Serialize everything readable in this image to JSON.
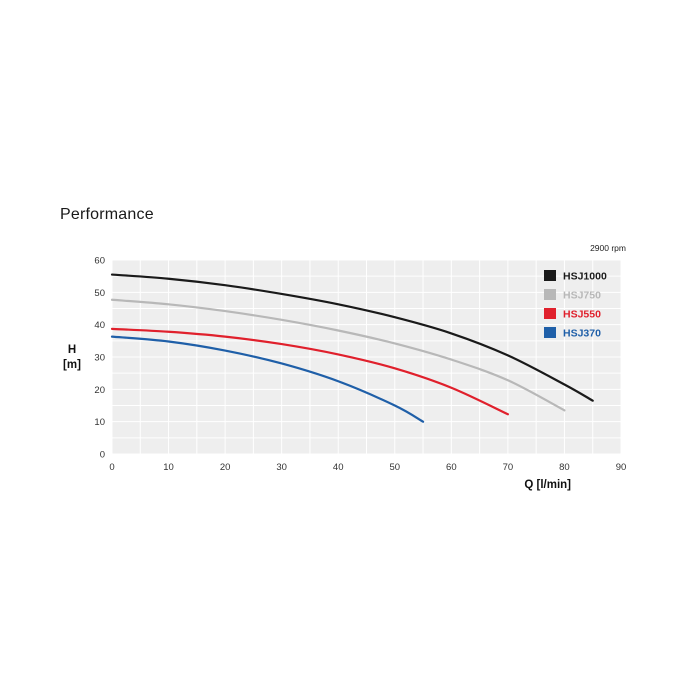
{
  "title": "Performance",
  "chart_data": {
    "type": "line",
    "title": "Performance",
    "annotation": "2900 rpm",
    "ylabel_line1": "H",
    "ylabel_line2": "[m]",
    "xlabel": "Q [l/min]",
    "xlim": [
      0,
      90
    ],
    "ylim": [
      0,
      60
    ],
    "xticks": [
      0,
      10,
      20,
      30,
      40,
      50,
      60,
      70,
      80,
      90
    ],
    "yticks": [
      0,
      10,
      20,
      30,
      40,
      50,
      60
    ],
    "grid": true,
    "legend_position": "top-right",
    "background": "#eeeeee",
    "series": [
      {
        "name": "HSJ1000",
        "color": "#1a1a1a",
        "x": [
          0,
          10,
          20,
          30,
          40,
          50,
          60,
          70,
          80,
          85
        ],
        "y": [
          55.5,
          54.2,
          52.2,
          49.5,
          46.3,
          42.3,
          37.3,
          30.5,
          21.5,
          16.5
        ]
      },
      {
        "name": "HSJ750",
        "color": "#b8b8b8",
        "x": [
          0,
          10,
          20,
          30,
          40,
          50,
          60,
          70,
          80
        ],
        "y": [
          47.7,
          46.3,
          44.2,
          41.5,
          38.2,
          34.2,
          29.2,
          22.8,
          13.5
        ]
      },
      {
        "name": "HSJ550",
        "color": "#e0202c",
        "x": [
          0,
          10,
          20,
          30,
          40,
          50,
          60,
          70
        ],
        "y": [
          38.7,
          37.8,
          36.3,
          34.0,
          30.8,
          26.5,
          20.5,
          12.3
        ]
      },
      {
        "name": "HSJ370",
        "color": "#1f5fa8",
        "x": [
          0,
          10,
          20,
          30,
          40,
          50,
          55
        ],
        "y": [
          36.3,
          34.8,
          32.0,
          28.0,
          22.5,
          15.0,
          10.0
        ]
      }
    ]
  }
}
